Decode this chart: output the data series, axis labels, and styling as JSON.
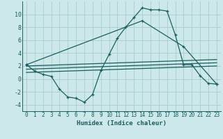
{
  "xlabel": "Humidex (Indice chaleur)",
  "bg_color": "#cce8e8",
  "grid_color": "#aacccc",
  "line_color": "#1a5f5f",
  "xlim": [
    -0.5,
    23.5
  ],
  "ylim": [
    -5.0,
    12.0
  ],
  "yticks": [
    -4,
    -2,
    0,
    2,
    4,
    6,
    8,
    10
  ],
  "xticks": [
    0,
    1,
    2,
    3,
    4,
    5,
    6,
    7,
    8,
    9,
    10,
    11,
    12,
    13,
    14,
    15,
    16,
    17,
    18,
    19,
    20,
    21,
    22,
    23
  ],
  "series1_x": [
    0,
    1,
    2,
    3,
    4,
    5,
    6,
    7,
    8,
    9,
    10,
    11,
    12,
    13,
    14,
    15,
    16,
    17,
    18,
    19,
    20,
    21,
    22,
    23
  ],
  "series1_y": [
    2.2,
    1.2,
    0.7,
    0.4,
    -1.6,
    -2.8,
    -3.0,
    -3.6,
    -2.4,
    1.3,
    3.8,
    6.3,
    8.0,
    9.5,
    11.0,
    10.7,
    10.7,
    10.5,
    6.8,
    2.2,
    2.2,
    0.5,
    -0.7,
    -0.8
  ],
  "series2_x": [
    0,
    14,
    19,
    23
  ],
  "series2_y": [
    2.2,
    9.0,
    5.0,
    -0.8
  ],
  "series3_x": [
    0,
    23
  ],
  "series3_y": [
    2.0,
    3.0
  ],
  "series4_x": [
    0,
    23
  ],
  "series4_y": [
    1.5,
    2.5
  ],
  "series5_x": [
    0,
    23
  ],
  "series5_y": [
    1.0,
    2.0
  ],
  "xlabel_fontsize": 6.5,
  "tick_labelsize": 5.5
}
